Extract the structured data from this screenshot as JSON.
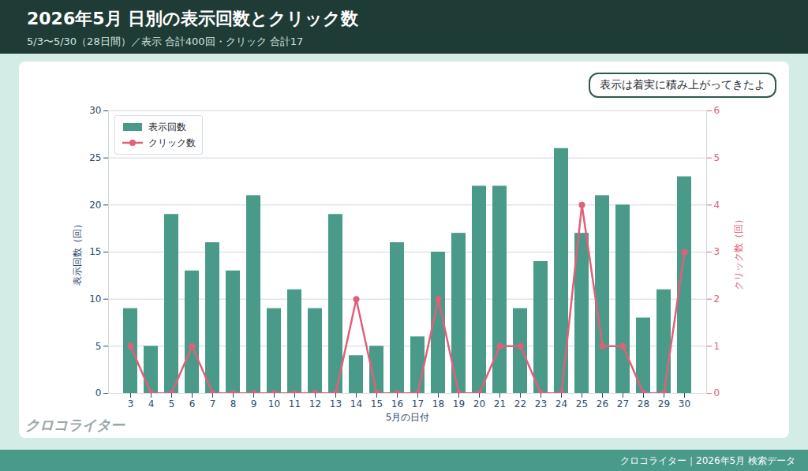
{
  "chart_data": {
    "type": "bar",
    "title": "2026年5月 日別の表示回数とクリック数",
    "subtitle": "5/3〜5/30（28日間）／表示 合計400回・クリック 合計17",
    "categories": [
      "3",
      "4",
      "5",
      "6",
      "7",
      "8",
      "9",
      "10",
      "11",
      "12",
      "13",
      "14",
      "15",
      "16",
      "17",
      "18",
      "19",
      "20",
      "21",
      "22",
      "23",
      "24",
      "25",
      "26",
      "27",
      "28",
      "29",
      "30"
    ],
    "series": [
      {
        "name": "表示回数",
        "type": "bar",
        "color": "#4a9a8a",
        "values": [
          9,
          5,
          19,
          13,
          16,
          13,
          21,
          9,
          11,
          9,
          19,
          4,
          5,
          16,
          6,
          15,
          17,
          22,
          22,
          9,
          14,
          26,
          17,
          21,
          20,
          8,
          11,
          23
        ]
      },
      {
        "name": "クリック数",
        "type": "line",
        "axis": "y2",
        "color": "#e0607a",
        "marker": "circle",
        "values": [
          1,
          0,
          0,
          1,
          0,
          0,
          0,
          0,
          0,
          0,
          0,
          2,
          0,
          0,
          0,
          2,
          0,
          0,
          1,
          1,
          0,
          0,
          4,
          1,
          1,
          0,
          0,
          3
        ]
      }
    ],
    "x_label": "5月の日付",
    "y_label": "表示回数（回）",
    "y2_label": "クリック数（回）",
    "ylim": [
      0,
      30
    ],
    "yticks": [
      0,
      5,
      10,
      15,
      20,
      25,
      30
    ],
    "y2lim": [
      0,
      6
    ],
    "y2ticks": [
      0,
      1,
      2,
      3,
      4,
      5,
      6
    ],
    "grid": true,
    "legend": "upper left",
    "annotations": [
      "表示は着実に積み上がってきたよ"
    ],
    "watermark": "クロコライター",
    "footer": "クロコライター｜2026年5月 検索データ"
  }
}
